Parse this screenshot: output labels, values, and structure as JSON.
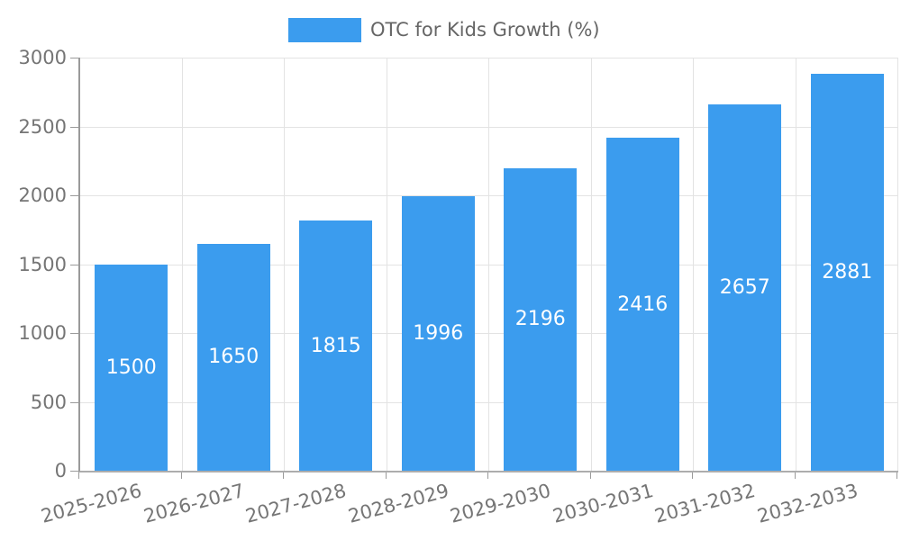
{
  "legend": {
    "label": "OTC for Kids Growth (%)"
  },
  "chart_data": {
    "type": "bar",
    "title": "",
    "xlabel": "",
    "ylabel": "",
    "categories": [
      "2025-2026",
      "2026-2027",
      "2027-2028",
      "2028-2029",
      "2029-2030",
      "2030-2031",
      "2031-2032",
      "2032-2033"
    ],
    "series": [
      {
        "name": "OTC for Kids Growth (%)",
        "values": [
          1500,
          1650,
          1815,
          1996,
          2196,
          2416,
          2657,
          2881
        ]
      }
    ],
    "ylim": [
      0,
      3000
    ],
    "yticks": [
      0,
      500,
      1000,
      1500,
      2000,
      2500,
      3000
    ],
    "grid": true,
    "legend_position": "top-center",
    "value_label_position": "inside-center",
    "x_label_rotation_deg": -15,
    "colors": {
      "bar": "#3B9CEE",
      "value_label": "#FFFFFF",
      "axis_label": "#757575",
      "legend_text": "#666666",
      "grid_line": "#E3E3E3",
      "axis_line": "#9A9A9A",
      "background": "#FFFFFF"
    }
  }
}
